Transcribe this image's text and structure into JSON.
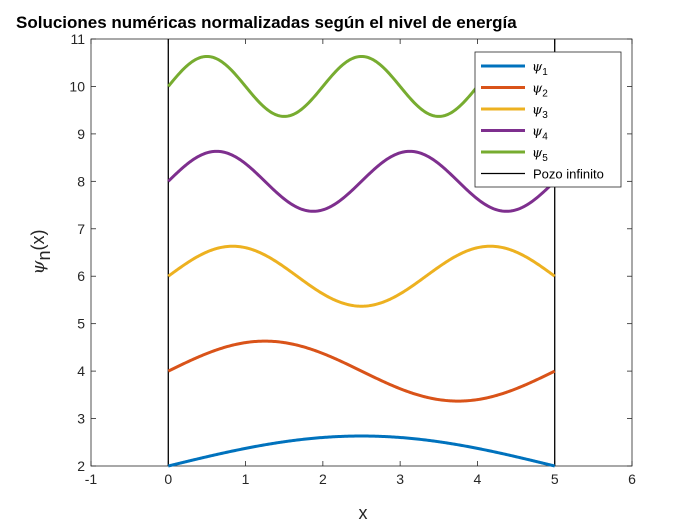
{
  "chart_data": {
    "type": "line",
    "title": "Soluciones numéricas normalizadas según el nivel de energía",
    "xlabel": "x",
    "ylabel_main": "ψ",
    "ylabel_sub": "n",
    "ylabel_tail": "(x)",
    "xlim": [
      -1,
      6
    ],
    "ylim": [
      2,
      11
    ],
    "xticks": [
      "-1",
      "0",
      "1",
      "2",
      "3",
      "4",
      "5",
      "6"
    ],
    "yticks": [
      "2",
      "3",
      "4",
      "5",
      "6",
      "7",
      "8",
      "9",
      "10",
      "11"
    ],
    "grid": false,
    "legend_placement": "top-right",
    "well": {
      "name": "Pozo infinito",
      "x_left": 0,
      "x_right": 5,
      "color": "#000000"
    },
    "series": [
      {
        "name": "ψ",
        "sub": "1",
        "n": 1,
        "offset": 2,
        "amplitude": 0.632,
        "color": "#0072BD"
      },
      {
        "name": "ψ",
        "sub": "2",
        "n": 2,
        "offset": 4,
        "amplitude": 0.632,
        "color": "#D95319"
      },
      {
        "name": "ψ",
        "sub": "3",
        "n": 3,
        "offset": 6,
        "amplitude": 0.632,
        "color": "#EDB120"
      },
      {
        "name": "ψ",
        "sub": "4",
        "n": 4,
        "offset": 8,
        "amplitude": 0.632,
        "color": "#7E2F8E"
      },
      {
        "name": "ψ",
        "sub": "5",
        "n": 5,
        "offset": 10,
        "amplitude": 0.632,
        "color": "#77AC30"
      }
    ]
  }
}
